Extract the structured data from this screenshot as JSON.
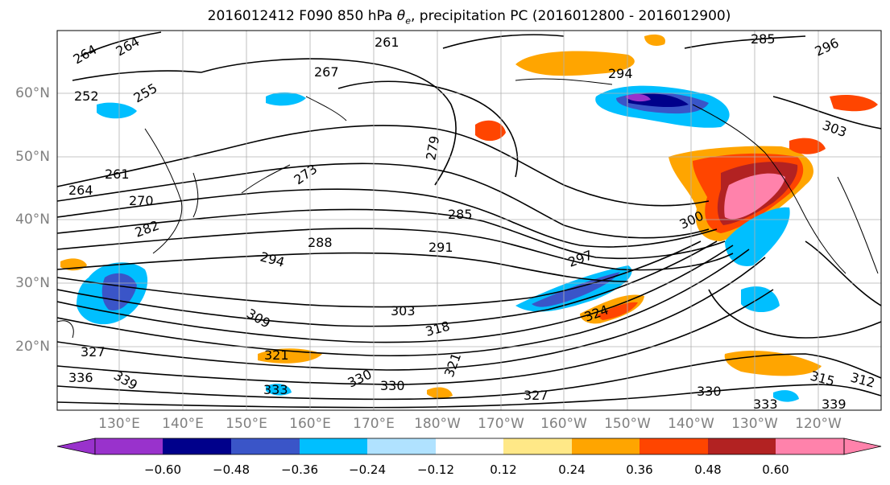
{
  "title_parts": {
    "prefix": "2016012412 F090 850 hPa ",
    "symbol": "θ",
    "subscript": "e",
    "suffix": ", precipitation PC (2016012800 - 2016012900)"
  },
  "map": {
    "region": "North Pacific",
    "lat_ticks": [
      "20°N",
      "30°N",
      "40°N",
      "50°N",
      "60°N"
    ],
    "lon_ticks": [
      "130°E",
      "140°E",
      "150°E",
      "160°E",
      "170°E",
      "180°W",
      "170°W",
      "160°W",
      "150°W",
      "140°W",
      "130°W",
      "120°W"
    ],
    "contour_labels": [
      "264",
      "264",
      "261",
      "267",
      "255",
      "252",
      "279",
      "273",
      "261",
      "264",
      "270",
      "282",
      "285",
      "288",
      "291",
      "294",
      "297",
      "300",
      "303",
      "309",
      "318",
      "321",
      "327",
      "330",
      "333",
      "336",
      "339",
      "321",
      "330",
      "327",
      "324",
      "315",
      "312",
      "285",
      "296",
      "303",
      "294",
      "330",
      "333",
      "339"
    ],
    "shading_colors": {
      "strong_negative": "#8a2be2",
      "negative_blue": "#00bfff",
      "positive_orange": "#ffa500",
      "positive_red": "#ff4500",
      "positive_pink": "#ff82ab"
    }
  },
  "colorbar": {
    "tick_labels": [
      "−0.60",
      "−0.48",
      "−0.36",
      "−0.24",
      "−0.12",
      "0.12",
      "0.24",
      "0.36",
      "0.48",
      "0.60"
    ],
    "colors": [
      "#9932cc",
      "#00008b",
      "#3a55c8",
      "#00bfff",
      "#b0e2ff",
      "#ffffff",
      "#ffe887",
      "#ffa500",
      "#ff4500",
      "#b22222",
      "#ff82ab"
    ]
  }
}
